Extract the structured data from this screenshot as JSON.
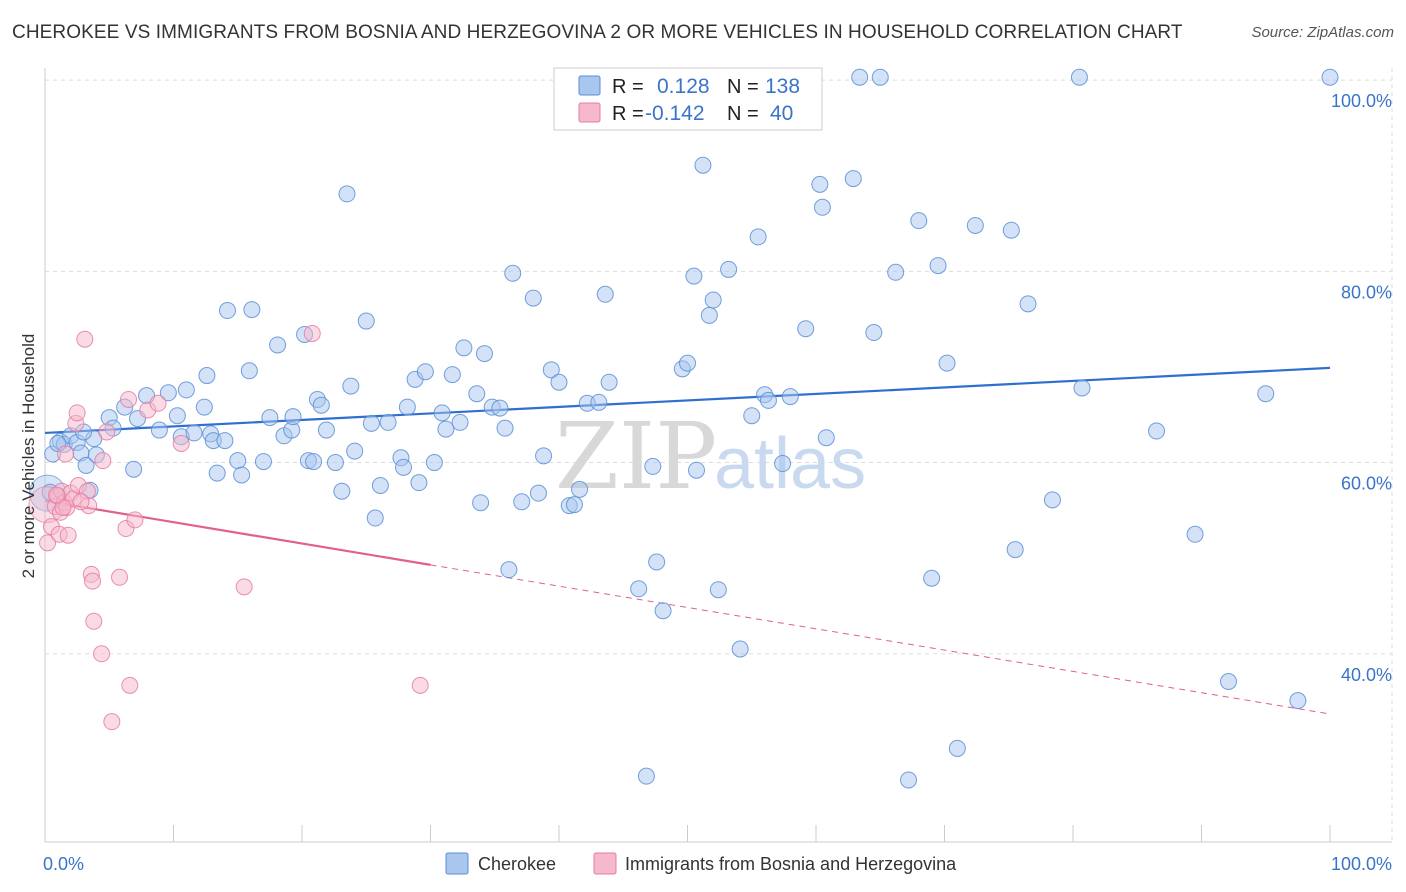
{
  "title": "CHEROKEE VS IMMIGRANTS FROM BOSNIA AND HERZEGOVINA 2 OR MORE VEHICLES IN HOUSEHOLD CORRELATION CHART",
  "source": "Source: ZipAtlas.com",
  "watermark": {
    "zip": "ZIP",
    "atlas": "atlas"
  },
  "colors": {
    "blue_fill": "#a8c6ee",
    "blue_stroke": "#5b8fd6",
    "blue_line": "#2f6fcf",
    "pink_fill": "#f6b8cc",
    "pink_stroke": "#e57da0",
    "pink_line": "#e0608e",
    "grid": "#dddddd",
    "accent_text": "#3a74c9"
  },
  "legend_box": {
    "rows": [
      {
        "r_label": "R =",
        "r_value": "0.128",
        "n_label": "N =",
        "n_value": "138",
        "color": "blue"
      },
      {
        "r_label": "R =",
        "r_value": "-0.142",
        "n_label": "N =",
        "n_value": "40",
        "color": "pink"
      }
    ]
  },
  "chart_data": {
    "type": "scatter",
    "title": "CHEROKEE VS IMMIGRANTS FROM BOSNIA AND HERZEGOVINA 2 OR MORE VEHICLES IN HOUSEHOLD CORRELATION CHART",
    "xlabel": "",
    "ylabel": "2 or more Vehicles in Household",
    "xlim": [
      0,
      100
    ],
    "ylim": [
      20,
      102
    ],
    "x_tick_labels": [
      "0.0%",
      "100.0%"
    ],
    "y_ticks": [
      40,
      60,
      80,
      100
    ],
    "y_tick_labels": [
      "40.0%",
      "60.0%",
      "80.0%",
      "100.0%"
    ],
    "grid": true,
    "legend_position": "bottom-center",
    "series": [
      {
        "name": "Cherokee",
        "color": "blue",
        "trend": {
          "x0": 0,
          "y0": 63.1,
          "x1": 100,
          "y1": 69.9
        },
        "points": [
          [
            0.4,
            56.9
          ],
          [
            0.6,
            60.9
          ],
          [
            1.2,
            62.2
          ],
          [
            1.5,
            61.9
          ],
          [
            2.0,
            62.8
          ],
          [
            2.5,
            62.1
          ],
          [
            2.8,
            61.0
          ],
          [
            3.2,
            59.7
          ],
          [
            3.5,
            57.1
          ],
          [
            3.8,
            62.5
          ],
          [
            4.0,
            60.8
          ],
          [
            5.0,
            64.7
          ],
          [
            5.3,
            63.6
          ],
          [
            6.2,
            65.8
          ],
          [
            6.9,
            59.3
          ],
          [
            7.2,
            64.6
          ],
          [
            7.9,
            67.0
          ],
          [
            8.9,
            63.4
          ],
          [
            9.6,
            67.3
          ],
          [
            10.3,
            64.9
          ],
          [
            10.6,
            62.7
          ],
          [
            11.0,
            67.6
          ],
          [
            11.6,
            63.1
          ],
          [
            12.4,
            65.8
          ],
          [
            12.6,
            69.1
          ],
          [
            12.9,
            63.0
          ],
          [
            13.1,
            62.3
          ],
          [
            13.4,
            58.9
          ],
          [
            14.0,
            62.3
          ],
          [
            14.2,
            75.9
          ],
          [
            15.0,
            60.2
          ],
          [
            15.3,
            58.7
          ],
          [
            15.9,
            69.6
          ],
          [
            16.1,
            76.0
          ],
          [
            17.0,
            60.1
          ],
          [
            17.5,
            64.7
          ],
          [
            18.1,
            72.3
          ],
          [
            18.6,
            62.8
          ],
          [
            19.2,
            63.4
          ],
          [
            19.3,
            64.8
          ],
          [
            20.2,
            73.4
          ],
          [
            20.5,
            60.2
          ],
          [
            20.9,
            60.1
          ],
          [
            21.2,
            66.6
          ],
          [
            21.5,
            66.0
          ],
          [
            21.9,
            63.4
          ],
          [
            22.6,
            60.0
          ],
          [
            23.1,
            57.0
          ],
          [
            23.5,
            88.1
          ],
          [
            23.8,
            68.0
          ],
          [
            24.1,
            61.2
          ],
          [
            25.0,
            74.8
          ],
          [
            25.4,
            64.1
          ],
          [
            25.7,
            54.2
          ],
          [
            26.1,
            57.6
          ],
          [
            26.7,
            64.2
          ],
          [
            27.7,
            60.5
          ],
          [
            27.9,
            59.5
          ],
          [
            28.2,
            65.8
          ],
          [
            28.8,
            68.7
          ],
          [
            29.1,
            57.9
          ],
          [
            29.6,
            69.5
          ],
          [
            30.3,
            60.0
          ],
          [
            30.9,
            65.2
          ],
          [
            31.2,
            63.5
          ],
          [
            31.7,
            69.2
          ],
          [
            32.3,
            64.2
          ],
          [
            32.6,
            72.0
          ],
          [
            33.6,
            67.2
          ],
          [
            33.9,
            55.8
          ],
          [
            34.2,
            71.4
          ],
          [
            34.8,
            65.8
          ],
          [
            35.4,
            65.7
          ],
          [
            35.8,
            63.6
          ],
          [
            36.1,
            48.8
          ],
          [
            36.4,
            79.8
          ],
          [
            37.1,
            55.9
          ],
          [
            38.0,
            77.2
          ],
          [
            38.4,
            56.8
          ],
          [
            38.8,
            60.7
          ],
          [
            39.4,
            69.7
          ],
          [
            40.0,
            68.4
          ],
          [
            40.8,
            55.5
          ],
          [
            41.2,
            55.6
          ],
          [
            41.6,
            57.2
          ],
          [
            42.2,
            66.2
          ],
          [
            43.1,
            66.3
          ],
          [
            43.6,
            77.6
          ],
          [
            43.9,
            68.4
          ],
          [
            46.2,
            46.8
          ],
          [
            46.8,
            27.2
          ],
          [
            47.3,
            59.6
          ],
          [
            47.6,
            49.6
          ],
          [
            48.1,
            44.5
          ],
          [
            49.6,
            69.8
          ],
          [
            50.0,
            70.4
          ],
          [
            50.5,
            79.5
          ],
          [
            50.7,
            59.2
          ],
          [
            51.2,
            91.1
          ],
          [
            51.7,
            75.4
          ],
          [
            52.0,
            77.0
          ],
          [
            52.4,
            46.7
          ],
          [
            53.2,
            80.2
          ],
          [
            54.1,
            40.5
          ],
          [
            55.0,
            64.9
          ],
          [
            55.5,
            83.6
          ],
          [
            56.0,
            67.1
          ],
          [
            56.3,
            66.5
          ],
          [
            57.4,
            59.9
          ],
          [
            58.0,
            66.9
          ],
          [
            59.2,
            74.0
          ],
          [
            60.3,
            89.1
          ],
          [
            60.5,
            86.7
          ],
          [
            60.8,
            62.6
          ],
          [
            62.9,
            89.7
          ],
          [
            63.4,
            100.3
          ],
          [
            64.5,
            73.6
          ],
          [
            65.0,
            100.3
          ],
          [
            66.2,
            79.9
          ],
          [
            67.2,
            26.8
          ],
          [
            68.0,
            85.3
          ],
          [
            69.0,
            47.9
          ],
          [
            69.5,
            80.6
          ],
          [
            70.2,
            70.4
          ],
          [
            71.0,
            30.1
          ],
          [
            72.4,
            84.8
          ],
          [
            75.2,
            84.3
          ],
          [
            75.5,
            50.9
          ],
          [
            76.5,
            76.6
          ],
          [
            78.4,
            56.1
          ],
          [
            80.5,
            100.3
          ],
          [
            80.7,
            67.8
          ],
          [
            86.5,
            63.3
          ],
          [
            89.5,
            52.5
          ],
          [
            92.1,
            37.1
          ],
          [
            95.0,
            67.2
          ],
          [
            97.5,
            35.1
          ],
          [
            100.0,
            100.3
          ],
          [
            1.0,
            62.0
          ],
          [
            3.0,
            63.2
          ]
        ],
        "big_point": [
          0.2,
          56.8
        ]
      },
      {
        "name": "Immigrants from Bosnia and Herzegovina",
        "color": "pink",
        "trend": {
          "x0": 0,
          "y0": 56.0,
          "x1": 30,
          "y1": 49.3,
          "dash_x1": 100,
          "dash_y1": 33.7
        },
        "points": [
          [
            0.2,
            51.6
          ],
          [
            0.5,
            53.3
          ],
          [
            0.8,
            55.4
          ],
          [
            1.0,
            56.5
          ],
          [
            1.1,
            52.5
          ],
          [
            1.2,
            54.8
          ],
          [
            1.3,
            57.0
          ],
          [
            1.5,
            55.8
          ],
          [
            1.6,
            60.9
          ],
          [
            1.7,
            55.3
          ],
          [
            1.8,
            52.4
          ],
          [
            2.0,
            56.8
          ],
          [
            2.2,
            56.2
          ],
          [
            2.4,
            64.1
          ],
          [
            2.5,
            65.2
          ],
          [
            2.6,
            57.6
          ],
          [
            3.1,
            72.9
          ],
          [
            3.3,
            57.0
          ],
          [
            3.4,
            55.5
          ],
          [
            3.6,
            48.3
          ],
          [
            3.7,
            47.6
          ],
          [
            3.8,
            43.4
          ],
          [
            4.4,
            40.0
          ],
          [
            4.5,
            60.2
          ],
          [
            4.8,
            63.2
          ],
          [
            5.2,
            32.9
          ],
          [
            5.8,
            48.0
          ],
          [
            6.3,
            53.1
          ],
          [
            6.5,
            66.6
          ],
          [
            6.6,
            36.7
          ],
          [
            7.0,
            54.0
          ],
          [
            8.0,
            65.5
          ],
          [
            8.8,
            66.2
          ],
          [
            10.6,
            62.0
          ],
          [
            15.5,
            47.0
          ],
          [
            20.8,
            73.5
          ],
          [
            29.2,
            36.7
          ],
          [
            1.4,
            55.3
          ],
          [
            2.8,
            55.9
          ],
          [
            0.9,
            56.6
          ]
        ],
        "big_point": [
          0.15,
          55.6
        ]
      }
    ]
  }
}
